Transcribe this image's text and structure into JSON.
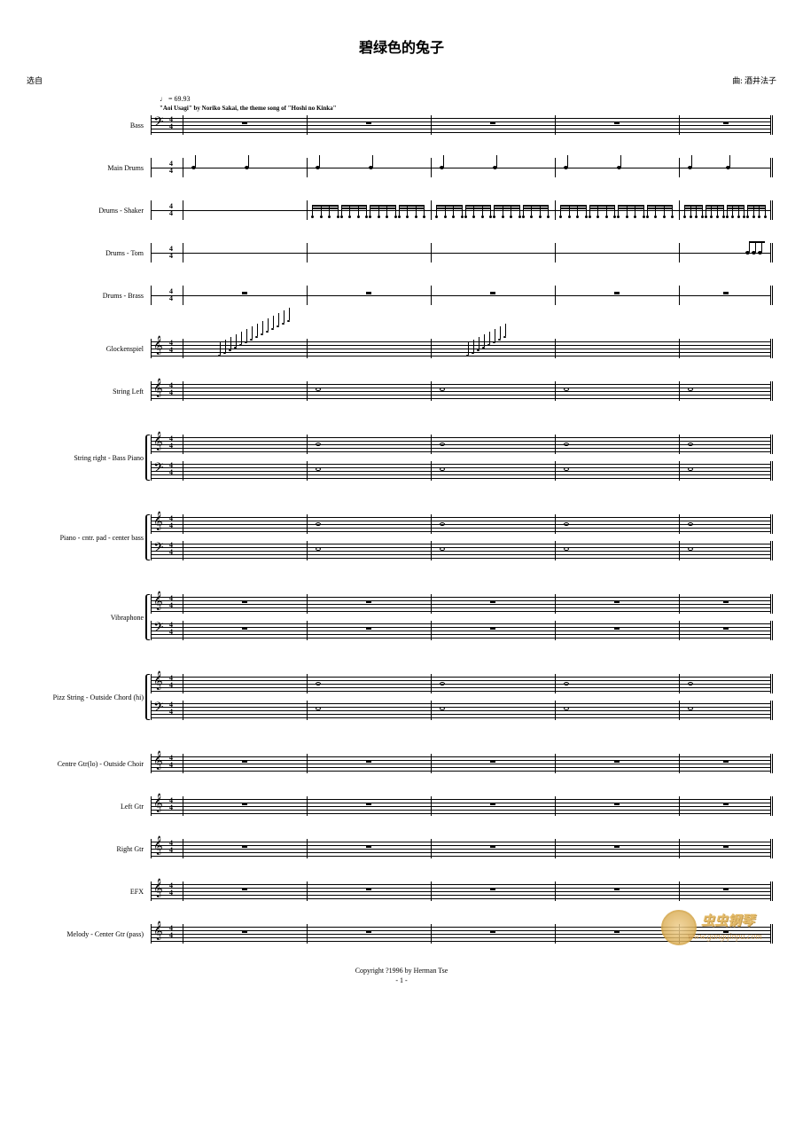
{
  "title": "碧绿色的兔子",
  "header_left": "选自",
  "header_right": "曲: 酒井法子",
  "tempo": "♩ = 69.93",
  "subtitle": "\"Aoi Usagi\" by Noriko Sakai, the theme song of \"Hoshi no Kinka\"",
  "instruments": [
    {
      "name": "Bass",
      "type": "single",
      "clef": "bass",
      "gap": "md"
    },
    {
      "name": "Main Drums",
      "type": "perc",
      "gap": "md",
      "content": "drums-main"
    },
    {
      "name": "Drums - Shaker",
      "type": "perc",
      "gap": "md",
      "content": "shaker"
    },
    {
      "name": "Drums - Tom",
      "type": "perc",
      "gap": "md",
      "content": "tom"
    },
    {
      "name": "Drums - Brass",
      "type": "perc",
      "gap": "lg"
    },
    {
      "name": "Glockenspiel",
      "type": "single",
      "clef": "treble",
      "gap": "md",
      "content": "glock"
    },
    {
      "name": "String Left",
      "type": "single",
      "clef": "treble",
      "gap": "lg",
      "content": "whole"
    },
    {
      "name": "String right - Bass Piano",
      "type": "grand",
      "gap": "lg",
      "content": "whole2"
    },
    {
      "name": "Piano - cntr. pad - center bass",
      "type": "grand",
      "gap": "lg",
      "content": "piano"
    },
    {
      "name": "Vibraphone",
      "type": "grand",
      "gap": "lg"
    },
    {
      "name": "Pizz String - Outside Chord (hi)",
      "type": "grand",
      "gap": "lg",
      "content": "pizz"
    },
    {
      "name": "Centre Gtr(lo) - Outside Choir",
      "type": "single",
      "clef": "treble",
      "gap": "md"
    },
    {
      "name": "Left Gtr",
      "type": "single",
      "clef": "treble",
      "gap": "md"
    },
    {
      "name": "Right Gtr",
      "type": "single",
      "clef": "treble",
      "gap": "md"
    },
    {
      "name": "EFX",
      "type": "single",
      "clef": "treble",
      "gap": "md"
    },
    {
      "name": "Melody - Center Gtr (pass)",
      "type": "single",
      "clef": "treble",
      "gap": "sm"
    }
  ],
  "time_sig": {
    "num": "4",
    "den": "4"
  },
  "measures": 5,
  "bar_positions": [
    35,
    175,
    315,
    455,
    595,
    700
  ],
  "copyright": "Copyright ?1996 by Herman Tse",
  "page_num": "- 1 -",
  "watermark": {
    "text": "虫虫钢琴",
    "url": "www.gangqinpu.com"
  },
  "colors": {
    "ink": "#000000",
    "bg": "#ffffff",
    "wm1": "#d4a548",
    "wm2": "#e0b050"
  }
}
